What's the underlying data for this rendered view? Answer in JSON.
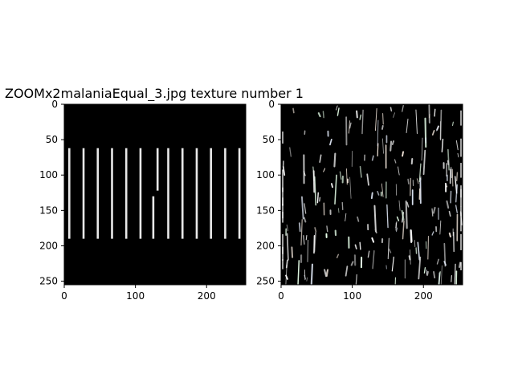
{
  "title": "ZOOMx2malaniaEqual_3.jpg texture number 1",
  "colors": {
    "image_bg": "#000000",
    "stripe": "#e8e8e8",
    "axis": "#000000"
  },
  "panels": [
    {
      "name": "left-panel",
      "x_ticks": [
        "0",
        "100",
        "200"
      ],
      "y_ticks": [
        "0",
        "50",
        "100",
        "150",
        "200",
        "250"
      ],
      "content": "vertical-stripes"
    },
    {
      "name": "right-panel",
      "x_ticks": [
        "0",
        "100",
        "200"
      ],
      "y_ticks": [
        "0",
        "50",
        "100",
        "150",
        "200",
        "250"
      ],
      "content": "noise-texture"
    }
  ],
  "chart_data": [
    {
      "type": "heatmap",
      "title": "ZOOMx2malaniaEqual_3.jpg texture number 1",
      "xlim": [
        0,
        255
      ],
      "ylim": [
        255,
        0
      ],
      "xticks": [
        0,
        100,
        200
      ],
      "yticks": [
        0,
        50,
        100,
        150,
        200,
        250
      ],
      "stripes": [
        {
          "x": 7,
          "y0": 62,
          "y1": 190
        },
        {
          "x": 27,
          "y0": 62,
          "y1": 190
        },
        {
          "x": 47,
          "y0": 62,
          "y1": 190
        },
        {
          "x": 67,
          "y0": 62,
          "y1": 190
        },
        {
          "x": 87,
          "y0": 62,
          "y1": 190
        },
        {
          "x": 107,
          "y0": 62,
          "y1": 190
        },
        {
          "x": 125,
          "y0": 130,
          "y1": 190
        },
        {
          "x": 131,
          "y0": 62,
          "y1": 122
        },
        {
          "x": 146,
          "y0": 62,
          "y1": 190
        },
        {
          "x": 166,
          "y0": 62,
          "y1": 190
        },
        {
          "x": 186,
          "y0": 62,
          "y1": 190
        },
        {
          "x": 206,
          "y0": 62,
          "y1": 190
        },
        {
          "x": 226,
          "y0": 62,
          "y1": 190
        },
        {
          "x": 246,
          "y0": 62,
          "y1": 190
        }
      ]
    },
    {
      "type": "heatmap",
      "xlim": [
        0,
        255
      ],
      "ylim": [
        255,
        0
      ],
      "xticks": [
        0,
        100,
        200
      ],
      "yticks": [
        0,
        50,
        100,
        150,
        200,
        250
      ],
      "content": "random bright streak texture"
    }
  ]
}
